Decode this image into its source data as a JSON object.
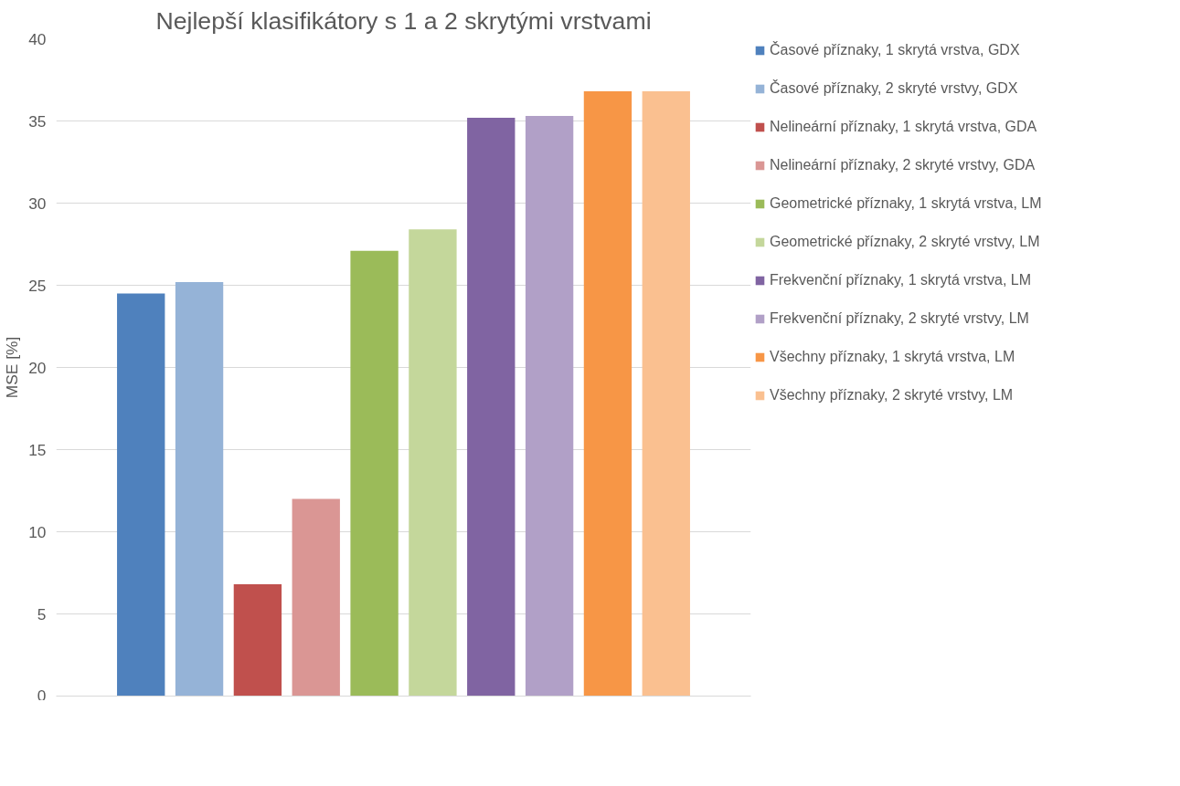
{
  "chart_data": {
    "type": "bar",
    "title": "Nejlepší klasifikátory s 1 a 2 skrytými vrstvami",
    "ylabel": "MSE [%]",
    "categories": [
      null
    ],
    "series": [
      {
        "name": "Časové příznaky, 1 skrytá vrstva, GDX",
        "color": "#4f81bd",
        "values": [
          24.5
        ]
      },
      {
        "name": "Časové příznaky, 2 skryté vrstvy, GDX",
        "color": "#95b3d7",
        "values": [
          25.2
        ]
      },
      {
        "name": "Nelineární příznaky, 1 skrytá vrstva, GDA",
        "color": "#c0504d",
        "values": [
          6.8
        ]
      },
      {
        "name": "Nelineární příznaky, 2 skryté vrstvy, GDA",
        "color": "#da9694",
        "values": [
          12.0
        ]
      },
      {
        "name": "Geometrické příznaky, 1 skrytá vrstva, LM",
        "color": "#9bbb59",
        "values": [
          27.1
        ]
      },
      {
        "name": "Geometrické příznaky, 2 skryté vrstvy, LM",
        "color": "#c4d79b",
        "values": [
          28.4
        ]
      },
      {
        "name": "Frekvenční příznaky, 1 skrytá vrstva, LM",
        "color": "#8064a2",
        "values": [
          35.2
        ]
      },
      {
        "name": "Frekvenční příznaky, 2 skryté vrstvy, LM",
        "color": "#b1a0c7",
        "values": [
          35.3
        ]
      },
      {
        "name": "Všechny příznaky, 1 skrytá vrstva, LM",
        "color": "#f79646",
        "values": [
          36.8
        ]
      },
      {
        "name": "Všechny příznaky, 2 skryté vrstvy, LM",
        "color": "#fac090",
        "values": [
          36.8
        ]
      }
    ],
    "ylim": [
      0,
      40
    ],
    "yticks": [
      0,
      5,
      10,
      15,
      20,
      25,
      30,
      35,
      40
    ],
    "grid": "y",
    "legend": "right"
  }
}
